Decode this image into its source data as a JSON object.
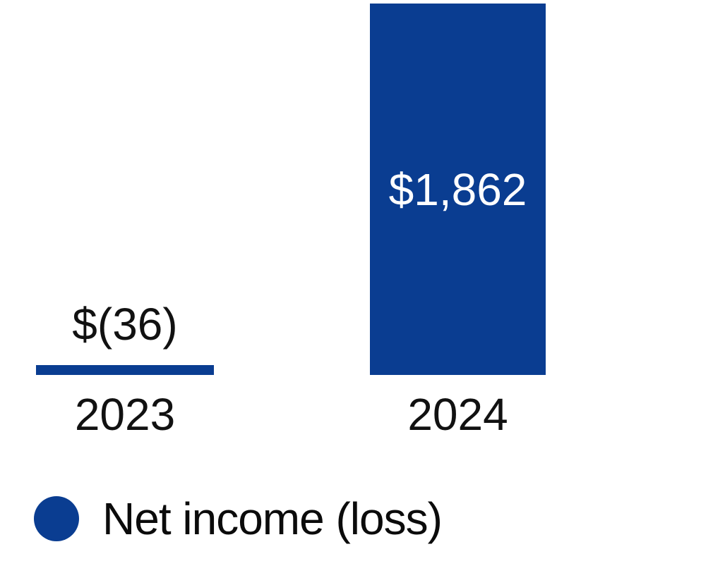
{
  "chart_data": {
    "type": "bar",
    "categories": [
      "2023",
      "2024"
    ],
    "series": [
      {
        "name": "Net income (loss)",
        "values": [
          -36,
          1862
        ]
      }
    ],
    "data_labels": [
      "$(36)",
      "$1,862"
    ],
    "title": "",
    "xlabel": "",
    "ylabel": "",
    "ylim": [
      -36,
      1862
    ],
    "grid": false,
    "axes_visible": false,
    "legend": {
      "position": "bottom-left",
      "entries": [
        {
          "label": "Net income (loss)",
          "marker": "circle",
          "color": "#0a3d91"
        }
      ]
    },
    "colors": {
      "bar": "#0a3d91",
      "label_inside_bar": "#ffffff",
      "label_outside_bar": "#111111",
      "tick_label": "#111111",
      "background": "#ffffff"
    }
  }
}
